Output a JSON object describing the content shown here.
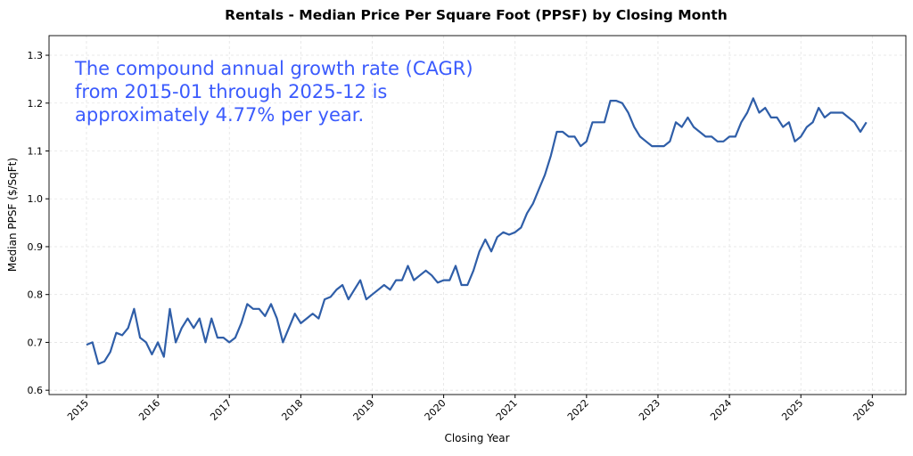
{
  "chart_data": {
    "type": "line",
    "title": "Rentals - Median Price Per Square Foot (PPSF) by Closing Month",
    "xlabel": "Closing Year",
    "ylabel": "Median PPSF ($/SqFt)",
    "annotation": [
      "The compound annual growth rate (CAGR)",
      "from 2015-01 through 2025-12 is",
      "approximately 4.77% per year."
    ],
    "xlim": [
      2014.476,
      2026.47
    ],
    "ylim": [
      0.591,
      1.341
    ],
    "x_ticks": [
      "2015",
      "2016",
      "2017",
      "2018",
      "2019",
      "2020",
      "2021",
      "2022",
      "2023",
      "2024",
      "2025",
      "2026"
    ],
    "y_ticks": [
      "0.6",
      "0.7",
      "0.8",
      "0.9",
      "1.0",
      "1.1",
      "1.2",
      "1.3"
    ],
    "grid": true,
    "line_color": "#2f5ea8",
    "annotation_color": "#3b5bfd",
    "x_start": "2015-01",
    "x_end": "2025-12",
    "series": [
      {
        "values": [
          0.695,
          0.7,
          0.655,
          0.66,
          0.68,
          0.72,
          0.715,
          0.73,
          0.77,
          0.71,
          0.7,
          0.675,
          0.7,
          0.67,
          0.77,
          0.7,
          0.73,
          0.75,
          0.73,
          0.75,
          0.7,
          0.75,
          0.71,
          0.71,
          0.7,
          0.71,
          0.74,
          0.78,
          0.77,
          0.77,
          0.755,
          0.78,
          0.75,
          0.7,
          0.73,
          0.76,
          0.74,
          0.75,
          0.76,
          0.75,
          0.79,
          0.795,
          0.81,
          0.82,
          0.79,
          0.81,
          0.83,
          0.79,
          0.8,
          0.81,
          0.82,
          0.81,
          0.83,
          0.83,
          0.86,
          0.83,
          0.84,
          0.85,
          0.84,
          0.825,
          0.83,
          0.83,
          0.86,
          0.82,
          0.82,
          0.85,
          0.89,
          0.915,
          0.89,
          0.92,
          0.93,
          0.925,
          0.93,
          0.94,
          0.97,
          0.99,
          1.02,
          1.05,
          1.09,
          1.14,
          1.14,
          1.13,
          1.13,
          1.11,
          1.12,
          1.16,
          1.16,
          1.16,
          1.205,
          1.205,
          1.2,
          1.18,
          1.15,
          1.13,
          1.12,
          1.11,
          1.11,
          1.11,
          1.12,
          1.16,
          1.15,
          1.17,
          1.15,
          1.14,
          1.13,
          1.13,
          1.12,
          1.12,
          1.13,
          1.13,
          1.16,
          1.18,
          1.21,
          1.18,
          1.19,
          1.17,
          1.17,
          1.15,
          1.16,
          1.12,
          1.13,
          1.15,
          1.16,
          1.19,
          1.17,
          1.18,
          1.18,
          1.18,
          1.17,
          1.16,
          1.14,
          1.16
        ]
      }
    ]
  }
}
